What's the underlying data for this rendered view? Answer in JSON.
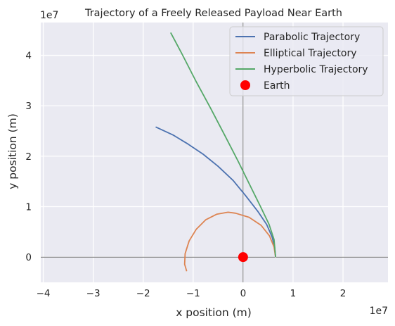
{
  "chart_data": {
    "type": "line",
    "title": "Trajectory of a Freely Released Payload Near Earth",
    "xlabel": "x position (m)",
    "ylabel": "y position (m)",
    "x_offset_label": "1e7",
    "y_offset_label": "1e7",
    "scale": 10000000,
    "xlim": [
      -40500000,
      29000000
    ],
    "ylim": [
      -5000000,
      46500000
    ],
    "x_ticks": [
      -40000000,
      -30000000,
      -20000000,
      -10000000,
      0,
      10000000,
      20000000
    ],
    "x_tick_labels": [
      "−4",
      "−3",
      "−2",
      "−1",
      "0",
      "1",
      "2"
    ],
    "y_ticks": [
      0,
      10000000,
      20000000,
      30000000,
      40000000
    ],
    "y_tick_labels": [
      "0",
      "1",
      "2",
      "3",
      "4"
    ],
    "grid": true,
    "legend_position": "top-right",
    "axes_reference_lines": true,
    "series": [
      {
        "name": "Parabolic Trajectory",
        "color": "#4c72b0",
        "points": [
          [
            6500000,
            0
          ],
          [
            6300000,
            2000000
          ],
          [
            5800000,
            4000000
          ],
          [
            4700000,
            6500000
          ],
          [
            3000000,
            9000000
          ],
          [
            500000,
            12200000
          ],
          [
            -2000000,
            15200000
          ],
          [
            -5000000,
            18000000
          ],
          [
            -8000000,
            20400000
          ],
          [
            -11000000,
            22400000
          ],
          [
            -14000000,
            24200000
          ],
          [
            -17500000,
            25800000
          ]
        ]
      },
      {
        "name": "Elliptical Trajectory",
        "color": "#dd8452",
        "points": [
          [
            6500000,
            0
          ],
          [
            6200000,
            2000000
          ],
          [
            5300000,
            4200000
          ],
          [
            3600000,
            6300000
          ],
          [
            1200000,
            7900000
          ],
          [
            -1500000,
            8700000
          ],
          [
            -3000000,
            8900000
          ],
          [
            -5300000,
            8500000
          ],
          [
            -7500000,
            7400000
          ],
          [
            -9400000,
            5500000
          ],
          [
            -10800000,
            3200000
          ],
          [
            -11600000,
            700000
          ],
          [
            -11700000,
            -1400000
          ],
          [
            -11300000,
            -2800000
          ]
        ]
      },
      {
        "name": "Hyperbolic Trajectory",
        "color": "#55a868",
        "points": [
          [
            6500000,
            0
          ],
          [
            6200000,
            3500000
          ],
          [
            5200000,
            6500000
          ],
          [
            3500000,
            10000000
          ],
          [
            1500000,
            14000000
          ],
          [
            -1000000,
            19000000
          ],
          [
            -3600000,
            24000000
          ],
          [
            -6500000,
            29500000
          ],
          [
            -9500000,
            35000000
          ],
          [
            -12200000,
            40200000
          ],
          [
            -14500000,
            44500000
          ]
        ]
      }
    ],
    "markers": [
      {
        "name": "Earth",
        "x": 0,
        "y": 0,
        "color": "#ff0000"
      }
    ]
  }
}
